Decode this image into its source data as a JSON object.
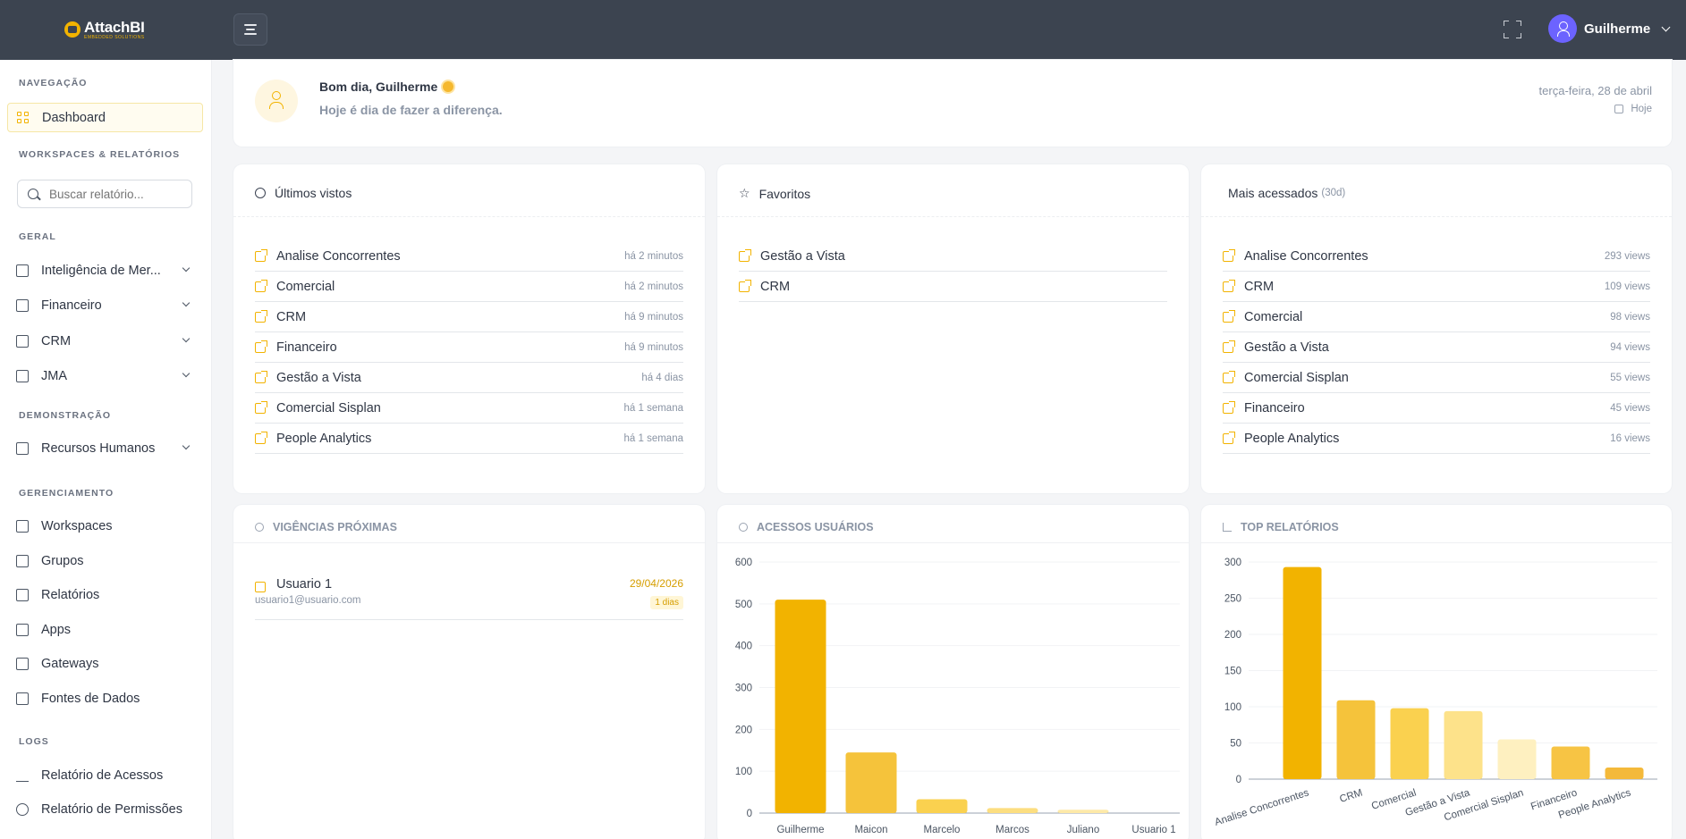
{
  "topbar": {
    "logo_title": "AttachBI",
    "logo_sub": "EMBEDDED SOLUTIONS",
    "user_name": "Guilherme"
  },
  "sidebar": {
    "sections": {
      "navegacao": "NAVEGAÇÃO",
      "workspaces": "WORKSPACES & RELATÓRIOS",
      "geral": "GERAL",
      "demonstracao": "DEMONSTRAÇÃO",
      "gerenciamento": "GERENCIAMENTO",
      "logs": "LOGS"
    },
    "dashboard": "Dashboard",
    "search_placeholder": "Buscar relatório...",
    "geral_items": [
      "Inteligência de Mer...",
      "Financeiro",
      "CRM",
      "JMA"
    ],
    "demo_items": [
      "Recursos Humanos"
    ],
    "gerenciamento_items": [
      "Workspaces",
      "Grupos",
      "Relatórios",
      "Apps",
      "Gateways",
      "Fontes de Dados"
    ],
    "logs_items": [
      "Relatório de Acessos",
      "Relatório de Permissões"
    ]
  },
  "greeting": {
    "title": "Bom dia, Guilherme",
    "subtitle": "Hoje é dia de fazer a diferença.",
    "date": "terça-feira, 28 de abril",
    "today": "Hoje"
  },
  "ultimos": {
    "title": "Últimos vistos",
    "items": [
      {
        "name": "Analise Concorrentes",
        "time": "há 2 minutos"
      },
      {
        "name": "Comercial",
        "time": "há 2 minutos"
      },
      {
        "name": "CRM",
        "time": "há 9 minutos"
      },
      {
        "name": "Financeiro",
        "time": "há 9 minutos"
      },
      {
        "name": "Gestão a Vista",
        "time": "há 4 dias"
      },
      {
        "name": "Comercial Sisplan",
        "time": "há 1 semana"
      },
      {
        "name": "People Analytics",
        "time": "há 1 semana"
      }
    ]
  },
  "favoritos": {
    "title": "Favoritos",
    "items": [
      "Gestão a Vista",
      "CRM"
    ]
  },
  "mais": {
    "title": "Mais acessados",
    "period": "(30d)",
    "items": [
      {
        "name": "Analise Concorrentes",
        "views": "293 views"
      },
      {
        "name": "CRM",
        "views": "109 views"
      },
      {
        "name": "Comercial",
        "views": "98 views"
      },
      {
        "name": "Gestão a Vista",
        "views": "94 views"
      },
      {
        "name": "Comercial Sisplan",
        "views": "55 views"
      },
      {
        "name": "Financeiro",
        "views": "45 views"
      },
      {
        "name": "People Analytics",
        "views": "16 views"
      }
    ]
  },
  "vigencias": {
    "title": "VIGÊNCIAS PRÓXIMAS",
    "item": {
      "name": "Usuario 1",
      "email": "usuario1@usuario.com",
      "date": "29/04/2026",
      "badge": "1 dias"
    }
  },
  "acessos_title": "ACESSOS USUÁRIOS",
  "top_title": "TOP RELATÓRIOS",
  "chart_data": [
    {
      "type": "bar",
      "title": "ACESSOS USUÁRIOS",
      "categories": [
        "Guilherme",
        "Maicon",
        "Marcelo",
        "Marcos",
        "Juliano",
        "Usuario 1"
      ],
      "values": [
        510,
        145,
        33,
        12,
        8,
        0
      ],
      "ylim": [
        0,
        600
      ],
      "yticks": [
        0,
        100,
        200,
        300,
        400,
        500,
        600
      ],
      "colors": [
        "#f2b300",
        "#f5c33b",
        "#fad14f",
        "#fcde80",
        "#fde9a8",
        "#fef2c9"
      ]
    },
    {
      "type": "bar",
      "title": "TOP RELATÓRIOS",
      "categories": [
        "Analise Concorrentes",
        "CRM",
        "Comercial",
        "Gestão a Vista",
        "Comercial Sisplan",
        "Financeiro",
        "People Analytics"
      ],
      "values": [
        293,
        109,
        98,
        94,
        55,
        45,
        16
      ],
      "ylim": [
        0,
        300
      ],
      "yticks": [
        0,
        50,
        100,
        150,
        200,
        250,
        300
      ],
      "colors": [
        "#f2b300",
        "#f5c33b",
        "#fad14f",
        "#fde28a",
        "#fef0c0",
        "#f7c444",
        "#f4b93a"
      ]
    }
  ]
}
